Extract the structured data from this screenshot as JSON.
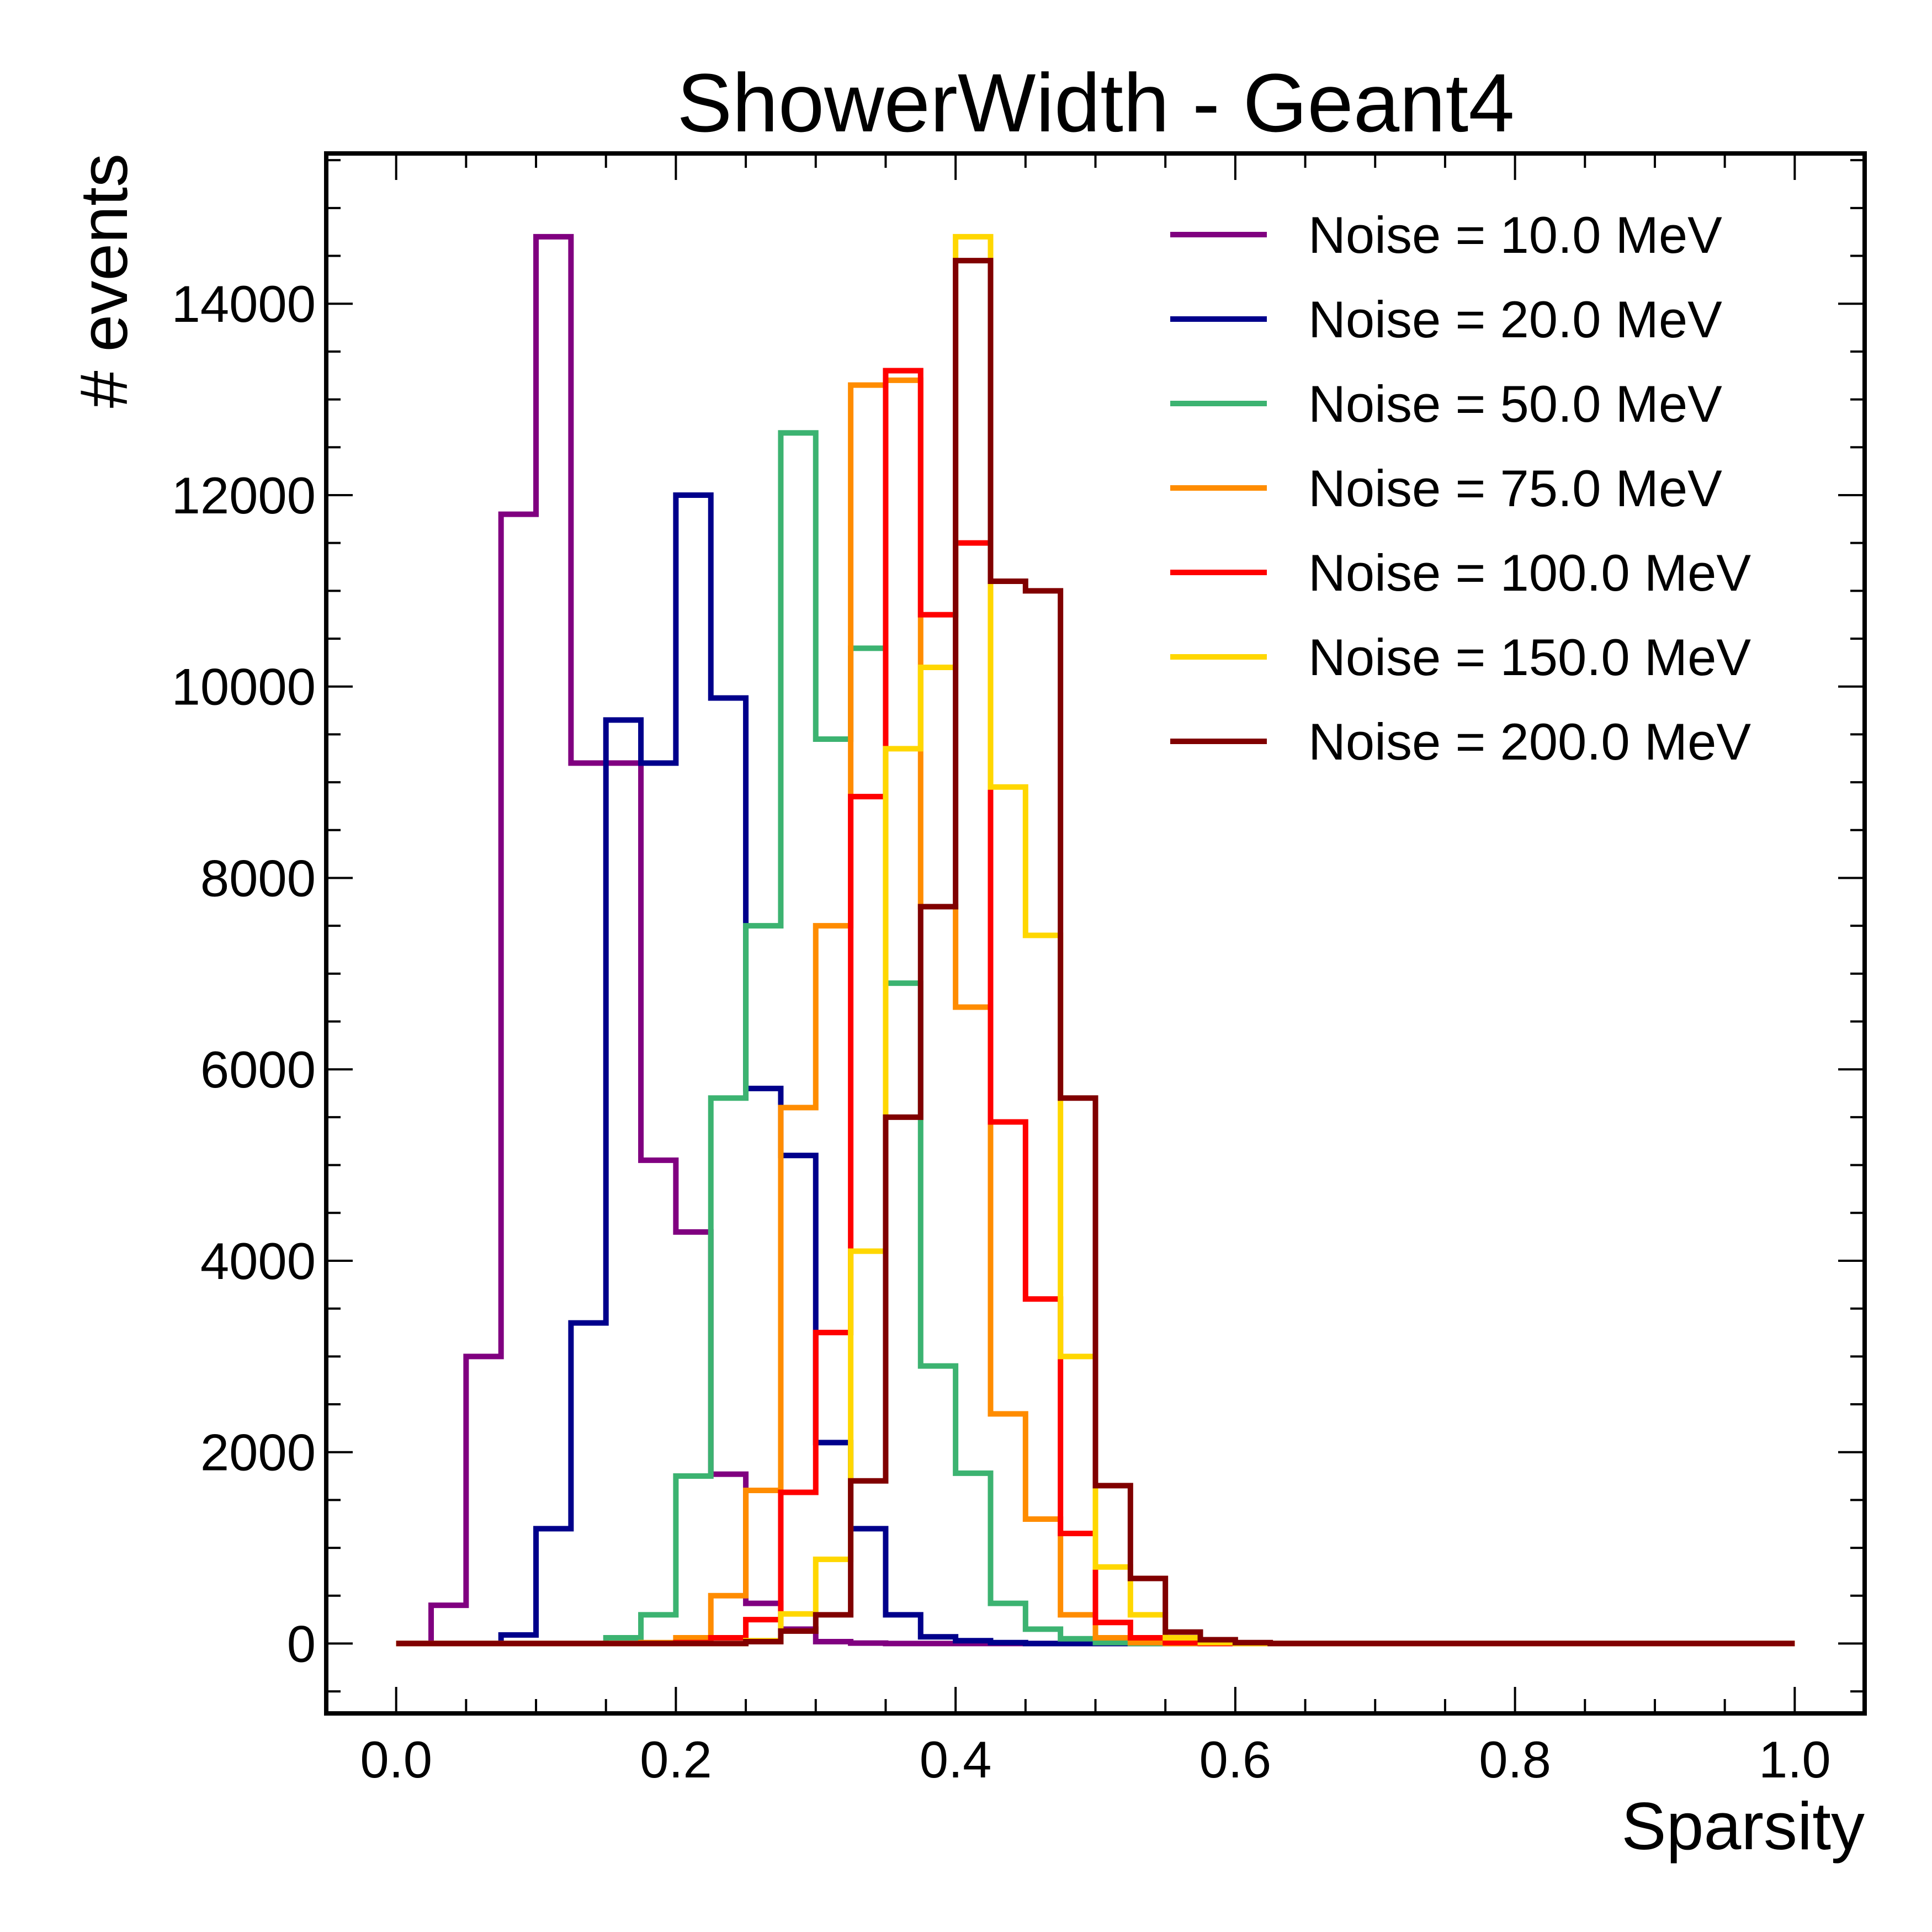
{
  "chart_data": {
    "type": "histogram",
    "title": "ShowerWidth - Geant4",
    "xlabel": "Sparsity",
    "ylabel": "# events",
    "xlim": [
      -0.05,
      1.05
    ],
    "ylim": [
      -730,
      15570
    ],
    "xticks": [
      0.0,
      0.2,
      0.4,
      0.6,
      0.8,
      1.0
    ],
    "xtick_labels": [
      "0.0",
      "0.2",
      "0.4",
      "0.6",
      "0.8",
      "1.0"
    ],
    "yticks": [
      0,
      2000,
      4000,
      6000,
      8000,
      10000,
      12000,
      14000
    ],
    "ytick_labels": [
      "0",
      "2000",
      "4000",
      "6000",
      "8000",
      "10000",
      "12000",
      "14000"
    ],
    "grid": false,
    "legend_position": "top-right",
    "bin_edges": [
      0.0,
      0.025,
      0.05,
      0.075,
      0.1,
      0.125,
      0.15,
      0.175,
      0.2,
      0.225,
      0.25,
      0.275,
      0.3,
      0.325,
      0.35,
      0.375,
      0.4,
      0.425,
      0.45,
      0.475,
      0.5,
      0.525,
      0.55,
      0.575,
      0.6,
      0.625,
      0.65,
      0.675,
      0.7,
      0.725,
      0.75,
      0.775,
      0.8,
      0.825,
      0.85,
      0.875,
      0.9,
      0.925,
      0.95,
      0.975,
      1.0
    ],
    "series": [
      {
        "name": "Noise = 10.0 MeV",
        "color": "#800080",
        "values": [
          0,
          400,
          3000,
          11800,
          14700,
          9200,
          9200,
          5050,
          4300,
          1770,
          420,
          150,
          20,
          5,
          0,
          0,
          0,
          0,
          0,
          0,
          0,
          0,
          0,
          0,
          0,
          0,
          0,
          0,
          0,
          0,
          0,
          0,
          0,
          0,
          0,
          0,
          0,
          0,
          0,
          0
        ]
      },
      {
        "name": "Noise = 20.0 MeV",
        "color": "#00008b",
        "values": [
          0,
          0,
          0,
          90,
          1200,
          3350,
          9650,
          9200,
          12000,
          9880,
          5800,
          5100,
          2100,
          1200,
          300,
          70,
          30,
          10,
          0,
          0,
          0,
          0,
          0,
          0,
          0,
          0,
          0,
          0,
          0,
          0,
          0,
          0,
          0,
          0,
          0,
          0,
          0,
          0,
          0,
          0
        ]
      },
      {
        "name": "Noise = 50.0 MeV",
        "color": "#3cb371",
        "values": [
          0,
          0,
          0,
          0,
          0,
          0,
          60,
          300,
          1750,
          5700,
          7500,
          12650,
          9450,
          10400,
          6900,
          2900,
          1780,
          420,
          150,
          50,
          10,
          0,
          0,
          0,
          0,
          0,
          0,
          0,
          0,
          0,
          0,
          0,
          0,
          0,
          0,
          0,
          0,
          0,
          0,
          0
        ]
      },
      {
        "name": "Noise = 75.0 MeV",
        "color": "#ff8c00",
        "values": [
          0,
          0,
          0,
          0,
          0,
          0,
          0,
          10,
          60,
          500,
          1600,
          5600,
          7500,
          13150,
          13200,
          7700,
          6650,
          2400,
          1300,
          300,
          60,
          10,
          0,
          0,
          0,
          0,
          0,
          0,
          0,
          0,
          0,
          0,
          0,
          0,
          0,
          0,
          0,
          0,
          0,
          0
        ]
      },
      {
        "name": "Noise = 100.0 MeV",
        "color": "#ff0000",
        "values": [
          0,
          0,
          0,
          0,
          0,
          0,
          0,
          0,
          10,
          60,
          250,
          1580,
          3250,
          8850,
          13300,
          10750,
          11500,
          5450,
          3600,
          1150,
          220,
          60,
          10,
          0,
          0,
          0,
          0,
          0,
          0,
          0,
          0,
          0,
          0,
          0,
          0,
          0,
          0,
          0,
          0,
          0
        ]
      },
      {
        "name": "Noise = 150.0 MeV",
        "color": "#ffd700",
        "values": [
          0,
          0,
          0,
          0,
          0,
          0,
          0,
          0,
          0,
          0,
          30,
          310,
          880,
          4100,
          9350,
          10200,
          14700,
          8950,
          7400,
          3000,
          800,
          300,
          60,
          10,
          0,
          0,
          0,
          0,
          0,
          0,
          0,
          0,
          0,
          0,
          0,
          0,
          0,
          0,
          0,
          0
        ]
      },
      {
        "name": "Noise = 200.0 MeV",
        "color": "#800000",
        "values": [
          0,
          0,
          0,
          0,
          0,
          0,
          0,
          0,
          0,
          0,
          20,
          130,
          300,
          1700,
          5500,
          7700,
          14450,
          11100,
          11000,
          5700,
          1650,
          680,
          120,
          40,
          10,
          0,
          0,
          0,
          0,
          0,
          0,
          0,
          0,
          0,
          0,
          0,
          0,
          0,
          0,
          0
        ]
      }
    ]
  }
}
